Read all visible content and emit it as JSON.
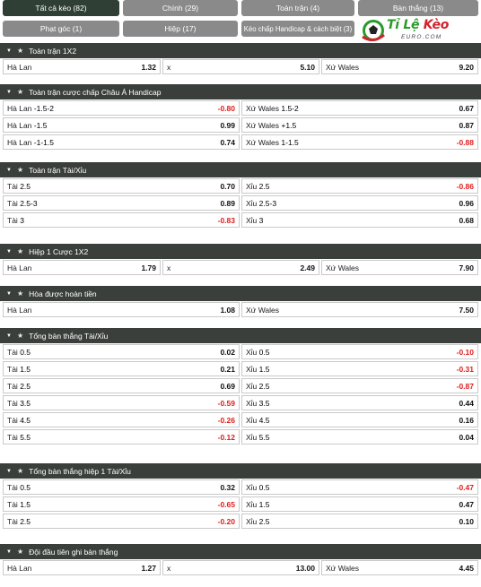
{
  "tabs": [
    {
      "label": "Tất cả kèo (82)"
    },
    {
      "label": "Chính (29)"
    },
    {
      "label": "Toàn trận (4)"
    },
    {
      "label": "Bàn thắng (13)"
    },
    {
      "label": "Phạt góc (1)"
    },
    {
      "label": "Hiệp (17)"
    },
    {
      "label": "Kèo chấp Handicap & cách biệt (3)"
    }
  ],
  "logo": {
    "text_a": "Tỉ Lệ ",
    "text_b": "Kèo",
    "sub": "EURO.COM"
  },
  "sections": [
    {
      "title": "Toàn trận 1X2",
      "rows": [
        [
          {
            "name": "Hà Lan",
            "odd": "1.32"
          },
          {
            "name": "x",
            "odd": "5.10"
          },
          {
            "name": "Xứ Wales",
            "odd": "9.20"
          }
        ]
      ]
    },
    {
      "title": "Toàn trận cược chấp Châu Á Handicap",
      "rows": [
        [
          {
            "name": "Hà Lan",
            "line": "-1.5-2",
            "odd": "-0.80"
          },
          {
            "name": "Xứ Wales",
            "line": "1.5-2",
            "odd": "0.67"
          }
        ],
        [
          {
            "name": "Hà Lan",
            "line": "-1.5",
            "odd": "0.99"
          },
          {
            "name": "Xứ Wales",
            "line": "+1.5",
            "odd": "0.87"
          }
        ],
        [
          {
            "name": "Hà Lan",
            "line": "-1-1.5",
            "odd": "0.74"
          },
          {
            "name": "Xứ Wales",
            "line": "1-1.5",
            "odd": "-0.88"
          }
        ]
      ]
    },
    {
      "title": "Toàn trận Tài/Xỉu",
      "rows": [
        [
          {
            "name": "Tài",
            "line": "2.5",
            "odd": "0.70"
          },
          {
            "name": "Xỉu",
            "line": "2.5",
            "odd": "-0.86"
          }
        ],
        [
          {
            "name": "Tài",
            "line": "2.5-3",
            "odd": "0.89"
          },
          {
            "name": "Xỉu",
            "line": "2.5-3",
            "odd": "0.96"
          }
        ],
        [
          {
            "name": "Tài",
            "line": "3",
            "odd": "-0.83"
          },
          {
            "name": "Xỉu",
            "line": "3",
            "odd": "0.68"
          }
        ]
      ]
    },
    {
      "title": "Hiệp 1 Cược 1X2",
      "rows": [
        [
          {
            "name": "Hà Lan",
            "odd": "1.79"
          },
          {
            "name": "x",
            "odd": "2.49"
          },
          {
            "name": "Xứ Wales",
            "odd": "7.90"
          }
        ]
      ]
    },
    {
      "title": "Hòa được hoàn tiền",
      "rows": [
        [
          {
            "name": "Hà Lan",
            "odd": "1.08"
          },
          {
            "name": "Xứ Wales",
            "odd": "7.50"
          }
        ]
      ]
    },
    {
      "title": "Tổng bàn thắng Tài/Xỉu",
      "rows": [
        [
          {
            "name": "Tài",
            "line": "0.5",
            "odd": "0.02"
          },
          {
            "name": "Xỉu",
            "line": "0.5",
            "odd": "-0.10"
          }
        ],
        [
          {
            "name": "Tài",
            "line": "1.5",
            "odd": "0.21"
          },
          {
            "name": "Xỉu",
            "line": "1.5",
            "odd": "-0.31"
          }
        ],
        [
          {
            "name": "Tài",
            "line": "2.5",
            "odd": "0.69"
          },
          {
            "name": "Xỉu",
            "line": "2.5",
            "odd": "-0.87"
          }
        ],
        [
          {
            "name": "Tài",
            "line": "3.5",
            "odd": "-0.59"
          },
          {
            "name": "Xỉu",
            "line": "3.5",
            "odd": "0.44"
          }
        ],
        [
          {
            "name": "Tài",
            "line": "4.5",
            "odd": "-0.26"
          },
          {
            "name": "Xỉu",
            "line": "4.5",
            "odd": "0.16"
          }
        ],
        [
          {
            "name": "Tài",
            "line": "5.5",
            "odd": "-0.12"
          },
          {
            "name": "Xỉu",
            "line": "5.5",
            "odd": "0.04"
          }
        ]
      ]
    },
    {
      "title": "Tổng bàn thắng hiệp 1 Tài/Xỉu",
      "rows": [
        [
          {
            "name": "Tài",
            "line": "0.5",
            "odd": "0.32"
          },
          {
            "name": "Xỉu",
            "line": "0.5",
            "odd": "-0.47"
          }
        ],
        [
          {
            "name": "Tài",
            "line": "1.5",
            "odd": "-0.65"
          },
          {
            "name": "Xỉu",
            "line": "1.5",
            "odd": "0.47"
          }
        ],
        [
          {
            "name": "Tài",
            "line": "2.5",
            "odd": "-0.20"
          },
          {
            "name": "Xỉu",
            "line": "2.5",
            "odd": "0.10"
          }
        ]
      ]
    },
    {
      "title": "Đội đầu tiên ghi bàn thắng",
      "rows": [
        [
          {
            "name": "Hà Lan",
            "odd": "1.27"
          },
          {
            "name": "x",
            "odd": "13.00"
          },
          {
            "name": "Xứ Wales",
            "odd": "4.45"
          }
        ]
      ]
    }
  ],
  "colors": {
    "header_bg": "#3a3f3c",
    "tab_active": "#2f3f36",
    "tab_inactive": "#8a8a8a",
    "negative": "#e01c1c"
  },
  "icons": {
    "collapse": "triangle-down-icon",
    "favorite": "star-icon"
  }
}
